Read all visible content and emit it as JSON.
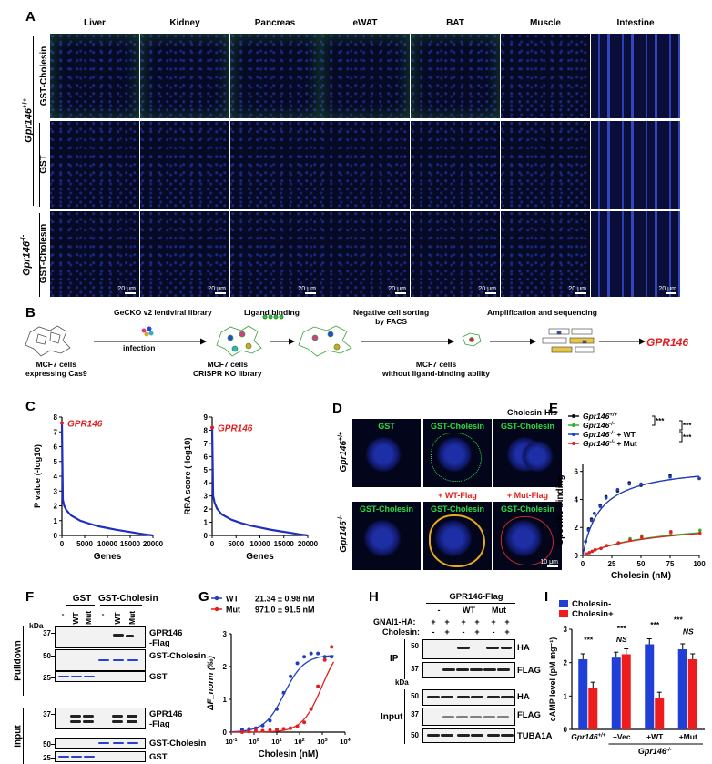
{
  "panel_letters": {
    "A": "A",
    "B": "B",
    "C": "C",
    "D": "D",
    "E": "E",
    "F": "F",
    "G": "G",
    "H": "H",
    "I": "I"
  },
  "panelA": {
    "tissues": [
      "Liver",
      "Kidney",
      "Pancreas",
      "eWAT",
      "BAT",
      "Muscle",
      "Intestine"
    ],
    "row_labels": [
      "GST-Cholesin",
      "GST",
      "GST-Cholesin"
    ],
    "genotypes": [
      "Gpr146+/+",
      "Gpr146-/-"
    ],
    "scalebar": "20 μm"
  },
  "panelB": {
    "step1_label": "MCF7 cells\nexpressing Cas9",
    "library": "GeCKO v2 lentiviral library",
    "infection": "infection",
    "step2_label": "MCF7 cells\nCRISPR KO library",
    "ligand": "Ligand binding",
    "sorting": "Negative cell sorting\nby FACS",
    "step3_label": "MCF7 cells\nwithout ligand-binding ability",
    "amplification": "Amplification and sequencing",
    "result": "GPR146"
  },
  "panelC": {
    "left": {
      "ylabel": "P value (-log10)",
      "xlabel": "Genes",
      "highlight": "GPR146",
      "yticks": [
        "0",
        "1",
        "2",
        "3",
        "4",
        "5",
        "6",
        "7",
        "8"
      ],
      "xticks": [
        "0",
        "5000",
        "10000",
        "15000",
        "20000"
      ]
    },
    "right": {
      "ylabel": "RRA score (-log10)",
      "xlabel": "Genes",
      "highlight": "GPR146",
      "yticks": [
        "0",
        "1",
        "2",
        "3",
        "4",
        "5",
        "6",
        "7",
        "8",
        "9"
      ],
      "xticks": [
        "0",
        "5000",
        "10000",
        "15000",
        "20000"
      ]
    }
  },
  "panelD": {
    "genotype_top": "Gpr146+/+",
    "genotype_bottom": "Gpr146-/-",
    "top_tiles": [
      "GST",
      "GST-Cholesin",
      "GST-Cholesin"
    ],
    "top_header": "Cholesin-His",
    "bottom_tiles": [
      "GST-Cholesin",
      "GST-Cholesin",
      "GST-Cholesin"
    ],
    "bottom_headers": [
      "+ WT-Flag",
      "+ Mut-Flag"
    ],
    "scalebar": "10 μm"
  },
  "panelE": {
    "legend": [
      "Gpr146+/+",
      "Gpr146-/-",
      "Gpr146-/- + WT",
      "Gpr146-/- + Mut"
    ],
    "stars": [
      "***",
      "***",
      "***"
    ],
    "ylabel": "Specific binding",
    "xlabel": "Cholesin (nM)",
    "xticks": [
      "0",
      "25",
      "50",
      "75",
      "100"
    ],
    "yticks": [
      "0",
      "2",
      "4",
      "6"
    ],
    "colors": [
      "#111111",
      "#2bb52b",
      "#1f3fbf",
      "#e02020"
    ]
  },
  "panelF": {
    "groups": [
      "GST",
      "GST-Cholesin"
    ],
    "lanes": [
      "-",
      "WT",
      "Mut",
      "-",
      "WT",
      "Mut"
    ],
    "kda": "kDa",
    "sections": [
      "Pulldown",
      "Input"
    ],
    "markers_pulldown": [
      "37",
      "50",
      "25"
    ],
    "markers_input": [
      "37",
      "50",
      "25"
    ],
    "bands_pulldown": [
      "GPR146\n-Flag",
      "GST-Cholesin",
      "GST"
    ],
    "bands_input": [
      "GPR146\n-Flag",
      "GST-Cholesin",
      "GST"
    ]
  },
  "panelG": {
    "legend": [
      {
        "name": "WT",
        "value": "21.34 ± 0.98 nM",
        "color": "#1f3fbf"
      },
      {
        "name": "Mut",
        "value": "971.0 ± 91.5 nM",
        "color": "#e02020"
      }
    ],
    "ylabel": "ΔF_norm (‰)",
    "xlabel": "Cholesin (nM)",
    "yticks": [
      "0",
      "1",
      "2",
      "3"
    ],
    "xticks": [
      "10^-1",
      "10^0",
      "10^1",
      "10^2",
      "10^3",
      "10^4"
    ]
  },
  "panelH": {
    "title": "GPR146-Flag",
    "row_labels": [
      "GNAI1-HA:",
      "Cholesin:"
    ],
    "groups": [
      "-",
      "WT",
      "Mut"
    ],
    "gnai1": [
      "+",
      "+",
      "+",
      "+",
      "+",
      "+"
    ],
    "cholesin": [
      "-",
      "+",
      "-",
      "+",
      "-",
      "+"
    ],
    "sections": [
      "IP",
      "Input"
    ],
    "ip_bands": [
      "HA",
      "FLAG"
    ],
    "input_bands": [
      "HA",
      "FLAG",
      "TUBA1A"
    ],
    "kda": "kDa",
    "markers_ip": [
      "50",
      "37"
    ],
    "markers_input": [
      "50",
      "37",
      "50"
    ]
  },
  "panelI": {
    "legend": [
      "Cholesin-",
      "Cholesin+"
    ],
    "colors": [
      "#1f3fd6",
      "#ee1c1c"
    ],
    "ylabel": "cAMP level (pM mg⁻¹)",
    "yticks": [
      "0",
      "1",
      "2",
      "3"
    ],
    "groups": [
      "Gpr146+/+",
      "+Vec",
      "+WT",
      "+Mut"
    ],
    "genotype_ko": "Gpr146-/-",
    "significance": [
      "***",
      "***",
      "NS",
      "***",
      "***",
      "NS"
    ]
  },
  "chart_data": [
    {
      "type": "line",
      "title": "",
      "xlabel": "Genes",
      "ylabel": "P value (-log10)",
      "xlim": [
        0,
        20000
      ],
      "ylim": [
        0,
        8
      ],
      "series": [
        {
          "name": "",
          "x": [
            0,
            200,
            500,
            1000,
            2000,
            4000,
            6000,
            8000,
            10000,
            12000,
            14000,
            16000,
            18000,
            20000
          ],
          "values": [
            7.6,
            2.4,
            2.0,
            1.7,
            1.35,
            1.0,
            0.8,
            0.62,
            0.5,
            0.38,
            0.28,
            0.18,
            0.08,
            0.0
          ]
        }
      ],
      "annotations": [
        "GPR146"
      ]
    },
    {
      "type": "line",
      "title": "",
      "xlabel": "Genes",
      "ylabel": "RRA score (-log10)",
      "xlim": [
        0,
        20000
      ],
      "ylim": [
        0,
        9
      ],
      "series": [
        {
          "name": "",
          "x": [
            0,
            200,
            500,
            1000,
            2000,
            4000,
            6000,
            8000,
            10000,
            12000,
            14000,
            16000,
            18000,
            20000
          ],
          "values": [
            8.2,
            3.0,
            2.5,
            2.05,
            1.6,
            1.2,
            0.95,
            0.75,
            0.6,
            0.45,
            0.33,
            0.22,
            0.1,
            0.0
          ]
        }
      ],
      "annotations": [
        "GPR146"
      ]
    },
    {
      "type": "scatter",
      "title": "",
      "xlabel": "Cholesin (nM)",
      "ylabel": "Specific binding",
      "xlim": [
        0,
        100
      ],
      "ylim": [
        0,
        6.5
      ],
      "x": [
        2.5,
        5,
        7.5,
        10,
        15,
        20,
        30,
        40,
        50,
        75,
        100
      ],
      "series": [
        {
          "name": "Gpr146+/+",
          "values": [
            1.0,
            1.9,
            2.6,
            3.0,
            3.6,
            4.2,
            4.6,
            5.2,
            5.0,
            5.7,
            5.5
          ]
        },
        {
          "name": "Gpr146-/-",
          "values": [
            0.1,
            0.2,
            0.3,
            0.4,
            0.5,
            0.7,
            0.9,
            1.2,
            1.4,
            1.6,
            1.8
          ]
        },
        {
          "name": "Gpr146-/- + WT",
          "values": [
            1.0,
            1.8,
            2.5,
            3.0,
            3.5,
            4.1,
            4.7,
            5.1,
            5.1,
            5.6,
            5.5
          ]
        },
        {
          "name": "Gpr146-/- + Mut",
          "values": [
            0.1,
            0.2,
            0.3,
            0.4,
            0.5,
            0.7,
            0.9,
            1.1,
            1.3,
            1.7,
            1.6
          ]
        }
      ]
    },
    {
      "type": "scatter",
      "title": "",
      "xlabel": "Cholesin (nM)",
      "ylabel": "ΔF_norm (‰)",
      "x_scale": "log",
      "xlim": [
        0.1,
        10000
      ],
      "ylim": [
        0,
        3
      ],
      "x": [
        0.3,
        0.6,
        1.2,
        2.4,
        5,
        10,
        20,
        40,
        80,
        160,
        320,
        640,
        1280,
        2560
      ],
      "series": [
        {
          "name": "WT",
          "values": [
            0.08,
            0.1,
            0.12,
            0.2,
            0.35,
            0.7,
            1.2,
            1.7,
            2.1,
            2.3,
            2.4,
            2.4,
            2.3,
            2.3
          ]
        },
        {
          "name": "Mut",
          "values": [
            0.0,
            0.02,
            0.05,
            0.04,
            0.06,
            0.08,
            0.1,
            0.12,
            0.18,
            0.3,
            0.7,
            1.4,
            2.2,
            2.6
          ]
        }
      ]
    },
    {
      "type": "bar",
      "title": "",
      "xlabel": "",
      "ylabel": "cAMP level (pM mg⁻¹)",
      "ylim": [
        0,
        3
      ],
      "categories": [
        "Gpr146+/+",
        "+Vec",
        "+WT",
        "+Mut"
      ],
      "series": [
        {
          "name": "Cholesin-",
          "values": [
            2.1,
            2.15,
            2.55,
            2.4
          ]
        },
        {
          "name": "Cholesin+",
          "values": [
            1.25,
            2.25,
            0.95,
            2.1
          ]
        }
      ]
    }
  ]
}
